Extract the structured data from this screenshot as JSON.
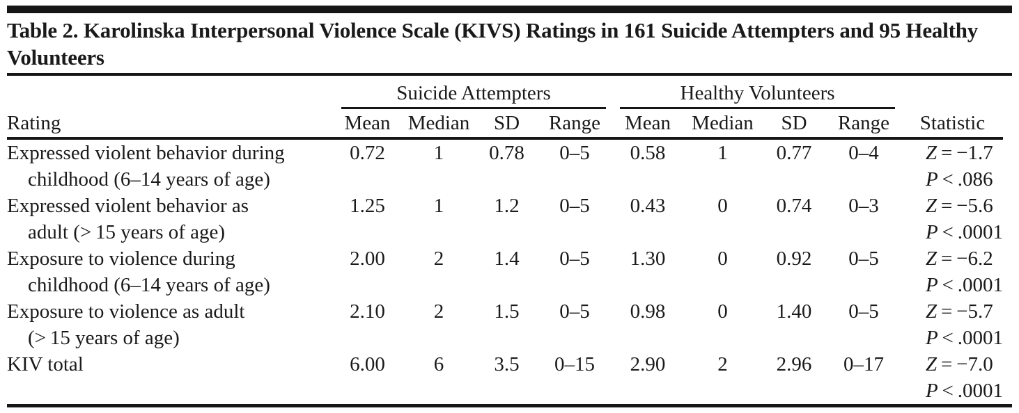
{
  "page": {
    "title": "Table 2. Karolinska Interpersonal Violence Scale (KIVS) Ratings in 161 Suicide Attempters and 95 Healthy Volunteers"
  },
  "colors": {
    "background": "#ffffff",
    "text": "#1a1a1a",
    "rule": "#161616"
  },
  "table": {
    "rating_header": "Rating",
    "statistic_header": "Statistic",
    "groups": [
      {
        "label": "Suicide Attempters",
        "cols": [
          "Mean",
          "Median",
          "SD",
          "Range"
        ]
      },
      {
        "label": "Healthy Volunteers",
        "cols": [
          "Mean",
          "Median",
          "SD",
          "Range"
        ]
      }
    ],
    "rows": [
      {
        "label1": "Expressed violent behavior during",
        "label2": "childhood (6–14 years of age)",
        "sa_mean": "0.72",
        "sa_median": "1",
        "sa_sd": "0.78",
        "sa_range": "0–5",
        "hv_mean": "0.58",
        "hv_median": "1",
        "hv_sd": "0.77",
        "hv_range": "0–4",
        "stat_z": "Z = −1.7",
        "stat_p": "P < .086"
      },
      {
        "label1": "Expressed violent behavior as",
        "label2": "adult (> 15 years of age)",
        "sa_mean": "1.25",
        "sa_median": "1",
        "sa_sd": "1.2",
        "sa_range": "0–5",
        "hv_mean": "0.43",
        "hv_median": "0",
        "hv_sd": "0.74",
        "hv_range": "0–3",
        "stat_z": "Z = −5.6",
        "stat_p": "P < .0001"
      },
      {
        "label1": "Exposure to violence during",
        "label2": "childhood (6–14 years of age)",
        "sa_mean": "2.00",
        "sa_median": "2",
        "sa_sd": "1.4",
        "sa_range": "0–5",
        "hv_mean": "1.30",
        "hv_median": "0",
        "hv_sd": "0.92",
        "hv_range": "0–5",
        "stat_z": "Z = −6.2",
        "stat_p": "P < .0001"
      },
      {
        "label1": "Exposure to violence as adult",
        "label2": "(> 15 years of age)",
        "sa_mean": "2.10",
        "sa_median": "2",
        "sa_sd": "1.5",
        "sa_range": "0–5",
        "hv_mean": "0.98",
        "hv_median": "0",
        "hv_sd": "1.40",
        "hv_range": "0–5",
        "stat_z": "Z = −5.7",
        "stat_p": "P < .0001"
      },
      {
        "label1": "KIV total",
        "label2": "",
        "sa_mean": "6.00",
        "sa_median": "6",
        "sa_sd": "3.5",
        "sa_range": "0–15",
        "hv_mean": "2.90",
        "hv_median": "2",
        "hv_sd": "2.96",
        "hv_range": "0–17",
        "stat_z": "Z = −7.0",
        "stat_p": "P < .0001"
      }
    ]
  }
}
